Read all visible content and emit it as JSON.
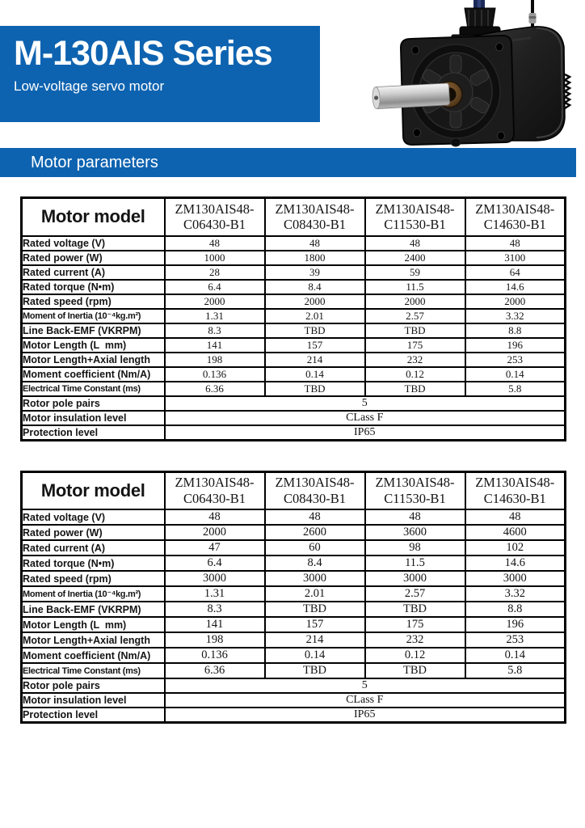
{
  "page": {
    "title": "M-130AIS Series",
    "subtitle": "Low-voltage servo motor",
    "section_title": "Motor parameters"
  },
  "colors": {
    "brand_blue": "#0e63b0",
    "table_border": "#000000"
  },
  "icons": {
    "motor_image": "servo-motor-product-photo"
  },
  "tables": [
    {
      "corner_label": "Motor model",
      "models": [
        "ZM130AIS48-\nC06430-B1",
        "ZM130AIS48-\nC08430-B1",
        "ZM130AIS48-\nC11530-B1",
        "ZM130AIS48-\nC14630-B1"
      ],
      "rows": [
        {
          "label": "Rated voltage (V)",
          "values": [
            "48",
            "48",
            "48",
            "48"
          ]
        },
        {
          "label": "Rated power (W)",
          "values": [
            "1000",
            "1800",
            "2400",
            "3100"
          ]
        },
        {
          "label": "Rated current (A)",
          "values": [
            "28",
            "39",
            "59",
            "64"
          ]
        },
        {
          "label": "Rated torque (N•m)",
          "values": [
            "6.4",
            "8.4",
            "11.5",
            "14.6"
          ]
        },
        {
          "label": "Rated speed (rpm)",
          "values": [
            "2000",
            "2000",
            "2000",
            "2000"
          ]
        },
        {
          "label": "Moment of Inertia (10⁻⁴kg.m²)",
          "values": [
            "1.31",
            "2.01",
            "2.57",
            "3.32"
          ]
        },
        {
          "label": "Line Back-EMF (VKRPM)",
          "values": [
            "8.3",
            "TBD",
            "TBD",
            "8.8"
          ]
        },
        {
          "label": "Motor Length (L  mm)",
          "values": [
            "141",
            "157",
            "175",
            "196"
          ]
        },
        {
          "label": "Motor Length+Axial length",
          "values": [
            "198",
            "214",
            "232",
            "253"
          ]
        },
        {
          "label": "Moment coefficient (Nm/A)",
          "values": [
            "0.136",
            "0.14",
            "0.12",
            "0.14"
          ]
        },
        {
          "label": "Electrical Time Constant (ms)",
          "values": [
            "6.36",
            "TBD",
            "TBD",
            "5.8"
          ]
        }
      ],
      "span_rows": [
        {
          "label": "Rotor pole pairs",
          "value": "5"
        },
        {
          "label": "Motor insulation level",
          "value": "CLass F"
        },
        {
          "label": "Protection level",
          "value": "IP65"
        }
      ]
    },
    {
      "corner_label": "Motor model",
      "models": [
        "ZM130AIS48-\nC06430-B1",
        "ZM130AIS48-\nC08430-B1",
        "ZM130AIS48-\nC11530-B1",
        "ZM130AIS48-\nC14630-B1"
      ],
      "rows": [
        {
          "label": "Rated voltage (V)",
          "values": [
            "48",
            "48",
            "48",
            "48"
          ]
        },
        {
          "label": "Rated power (W)",
          "values": [
            "2000",
            "2600",
            "3600",
            "4600"
          ]
        },
        {
          "label": "Rated current (A)",
          "values": [
            "47",
            "60",
            "98",
            "102"
          ]
        },
        {
          "label": "Rated torque (N•m)",
          "values": [
            "6.4",
            "8.4",
            "11.5",
            "14.6"
          ]
        },
        {
          "label": "Rated speed (rpm)",
          "values": [
            "3000",
            "3000",
            "3000",
            "3000"
          ]
        },
        {
          "label": "Moment of Inertia (10⁻⁴kg.m²)",
          "values": [
            "1.31",
            "2.01",
            "2.57",
            "3.32"
          ]
        },
        {
          "label": "Line Back-EMF (VKRPM)",
          "values": [
            "8.3",
            "TBD",
            "TBD",
            "8.8"
          ]
        },
        {
          "label": "Motor Length (L  mm)",
          "values": [
            "141",
            "157",
            "175",
            "196"
          ]
        },
        {
          "label": "Motor Length+Axial length",
          "values": [
            "198",
            "214",
            "232",
            "253"
          ]
        },
        {
          "label": "Moment coefficient (Nm/A)",
          "values": [
            "0.136",
            "0.14",
            "0.12",
            "0.14"
          ]
        },
        {
          "label": "Electrical Time Constant (ms)",
          "values": [
            "6.36",
            "TBD",
            "TBD",
            "5.8"
          ]
        }
      ],
      "span_rows": [
        {
          "label": "Rotor pole pairs",
          "value": "5"
        },
        {
          "label": "Motor insulation level",
          "value": "CLass F"
        },
        {
          "label": "Protection level",
          "value": "IP65"
        }
      ]
    }
  ]
}
